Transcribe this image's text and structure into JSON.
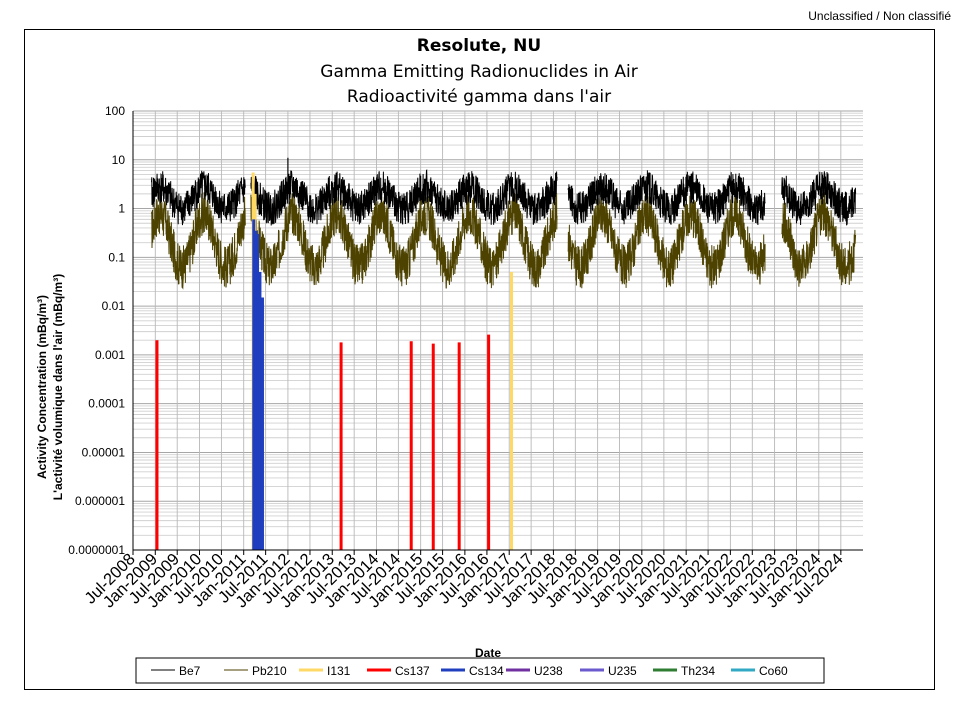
{
  "header": {
    "classification": "Unclassified / Non classifié"
  },
  "chart_data": {
    "type": "line",
    "title": "Resolute, NU",
    "subtitle_en": "Gamma Emitting Radionuclides in Air",
    "subtitle_fr": "Radioactivité gamma dans l'air",
    "xlabel": "Date",
    "ylabel_en": "Activity Concentration  (mBq/m³)",
    "ylabel_fr": "L'activité volumique dans l'air (mBq/m³)",
    "y_scale": "log",
    "ylim": [
      1e-07,
      100
    ],
    "y_ticks": [
      "100",
      "10",
      "1",
      "0.1",
      "0.01",
      "0.001",
      "0.0001",
      "0.00001",
      "0.000001",
      "0.0000001"
    ],
    "x_ticks": [
      "Jul-2008",
      "Jan-2009",
      "Jul-2009",
      "Jan-2010",
      "Jul-2010",
      "Jan-2011",
      "Jul-2011",
      "Jan-2012",
      "Jul-2012",
      "Jan-2013",
      "Jul-2013",
      "Jan-2014",
      "Jul-2014",
      "Jan-2015",
      "Jul-2015",
      "Jan-2016",
      "Jul-2016",
      "Jan-2017",
      "Jul-2017",
      "Jan-2018",
      "Jul-2018",
      "Jan-2019",
      "Jul-2019",
      "Jan-2020",
      "Jul-2020",
      "Jan-2021",
      "Jul-2021",
      "Jan-2022",
      "Jul-2022",
      "Jan-2023",
      "Jul-2023",
      "Jan-2024",
      "Jul-2024"
    ],
    "xlim": [
      "2008-07-01",
      "2024-12-31"
    ],
    "grid": true,
    "legend_position": "bottom",
    "series": [
      {
        "name": "Be7",
        "color": "#000000",
        "segments": [
          [
            "2008-12-01",
            "2011-01-15"
          ],
          [
            "2011-03-01",
            "2018-01-31"
          ],
          [
            "2018-05-01",
            "2022-10-15"
          ],
          [
            "2023-03-01",
            "2024-10-31"
          ]
        ],
        "typical_range": [
          0.3,
          6
        ],
        "peak": {
          "date": "2012-01-01",
          "value": 11
        }
      },
      {
        "name": "Pb210",
        "color": "#4d4200",
        "segments": [
          [
            "2008-12-01",
            "2011-01-15"
          ],
          [
            "2011-03-01",
            "2018-01-31"
          ],
          [
            "2018-05-01",
            "2022-10-15"
          ],
          [
            "2023-03-01",
            "2024-10-31"
          ]
        ],
        "typical_range": [
          0.015,
          2
        ]
      },
      {
        "name": "I131",
        "color": "#ffd966",
        "points": [
          {
            "date": "2011-03-20",
            "value": 5.5
          },
          {
            "date": "2011-04-05",
            "value": 2.0
          },
          {
            "date": "2017-01-20",
            "value": 0.05
          }
        ]
      },
      {
        "name": "Cs137",
        "color": "#ff0000",
        "points": [
          {
            "date": "2009-01-15",
            "value": 0.002
          },
          {
            "date": "2013-03-15",
            "value": 0.0018
          },
          {
            "date": "2014-10-15",
            "value": 0.0019
          },
          {
            "date": "2015-04-15",
            "value": 0.0017
          },
          {
            "date": "2015-11-15",
            "value": 0.0018
          },
          {
            "date": "2016-07-15",
            "value": 0.0026
          }
        ]
      },
      {
        "name": "Cs134",
        "color": "#1f3fbf",
        "points": [
          {
            "date": "2011-03-25",
            "value": 0.6
          },
          {
            "date": "2011-04-10",
            "value": 0.35
          },
          {
            "date": "2011-04-25",
            "value": 0.3
          },
          {
            "date": "2011-05-15",
            "value": 0.05
          },
          {
            "date": "2011-06-05",
            "value": 0.015
          }
        ]
      },
      {
        "name": "U238",
        "color": "#7030a0",
        "points": []
      },
      {
        "name": "U235",
        "color": "#6a5acd",
        "points": []
      },
      {
        "name": "Th234",
        "color": "#2e7d32",
        "points": []
      },
      {
        "name": "Co60",
        "color": "#31a9c4",
        "points": []
      }
    ]
  }
}
